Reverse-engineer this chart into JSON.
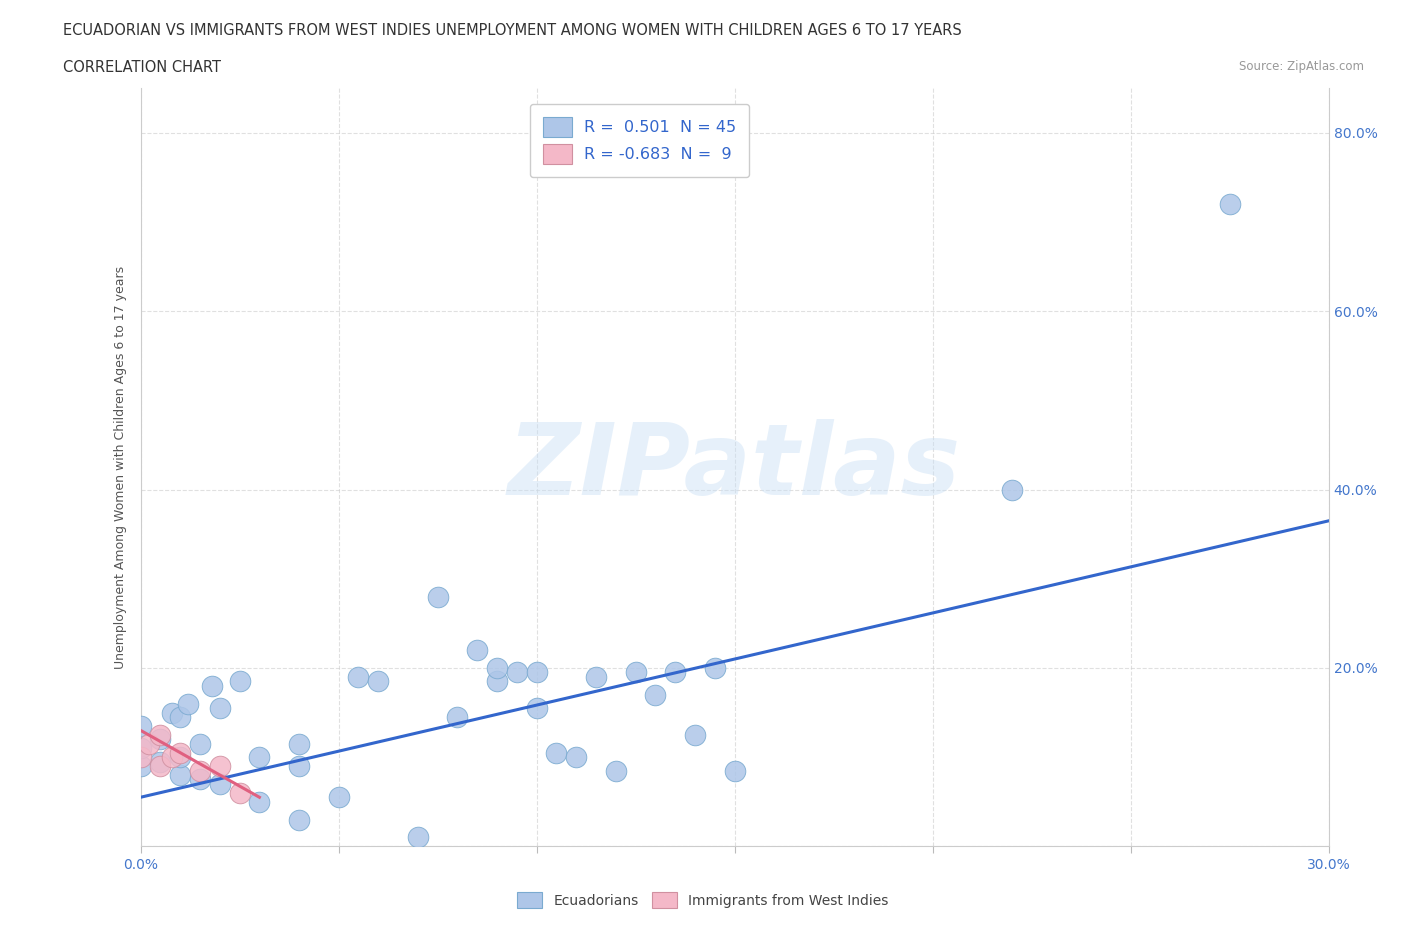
{
  "title_line1": "ECUADORIAN VS IMMIGRANTS FROM WEST INDIES UNEMPLOYMENT AMONG WOMEN WITH CHILDREN AGES 6 TO 17 YEARS",
  "title_line2": "CORRELATION CHART",
  "source_text": "Source: ZipAtlas.com",
  "ylabel": "Unemployment Among Women with Children Ages 6 to 17 years",
  "xlim": [
    0.0,
    0.3
  ],
  "ylim": [
    0.0,
    0.85
  ],
  "x_ticks": [
    0.0,
    0.05,
    0.1,
    0.15,
    0.2,
    0.25,
    0.3
  ],
  "y_ticks": [
    0.0,
    0.2,
    0.4,
    0.6,
    0.8
  ],
  "background_color": "#ffffff",
  "plot_bg_color": "#ffffff",
  "grid_color": "#cccccc",
  "scatter_blue_color": "#aec6e8",
  "scatter_pink_color": "#f4b8c8",
  "line_blue_color": "#3366cc",
  "line_pink_color": "#e06080",
  "blue_points_x": [
    0.0,
    0.0,
    0.0,
    0.005,
    0.005,
    0.008,
    0.01,
    0.01,
    0.01,
    0.012,
    0.015,
    0.015,
    0.018,
    0.02,
    0.02,
    0.025,
    0.03,
    0.03,
    0.04,
    0.04,
    0.04,
    0.05,
    0.055,
    0.06,
    0.07,
    0.075,
    0.08,
    0.085,
    0.09,
    0.09,
    0.095,
    0.1,
    0.1,
    0.105,
    0.11,
    0.115,
    0.12,
    0.125,
    0.13,
    0.135,
    0.14,
    0.145,
    0.15,
    0.22,
    0.275
  ],
  "blue_points_y": [
    0.09,
    0.11,
    0.135,
    0.095,
    0.12,
    0.15,
    0.08,
    0.1,
    0.145,
    0.16,
    0.075,
    0.115,
    0.18,
    0.07,
    0.155,
    0.185,
    0.05,
    0.1,
    0.03,
    0.09,
    0.115,
    0.055,
    0.19,
    0.185,
    0.01,
    0.28,
    0.145,
    0.22,
    0.185,
    0.2,
    0.195,
    0.155,
    0.195,
    0.105,
    0.1,
    0.19,
    0.085,
    0.195,
    0.17,
    0.195,
    0.125,
    0.2,
    0.085,
    0.4,
    0.72
  ],
  "pink_points_x": [
    0.0,
    0.002,
    0.005,
    0.005,
    0.008,
    0.01,
    0.015,
    0.02,
    0.025
  ],
  "pink_points_y": [
    0.1,
    0.115,
    0.09,
    0.125,
    0.1,
    0.105,
    0.085,
    0.09,
    0.06
  ],
  "blue_line_x": [
    0.0,
    0.3
  ],
  "blue_line_y": [
    0.055,
    0.365
  ],
  "pink_line_x": [
    0.0,
    0.03
  ],
  "pink_line_y": [
    0.13,
    0.055
  ],
  "legend_items": [
    {
      "label": "R =  0.501  N = 45",
      "color": "#aec6e8",
      "edge": "#7aaad0"
    },
    {
      "label": "R = -0.683  N =  9",
      "color": "#f4b8c8",
      "edge": "#d090a0"
    }
  ],
  "bottom_legend": [
    {
      "label": "Ecuadorians",
      "color": "#aec6e8",
      "edge": "#7aaad0"
    },
    {
      "label": "Immigrants from West Indies",
      "color": "#f4b8c8",
      "edge": "#d090a0"
    }
  ]
}
